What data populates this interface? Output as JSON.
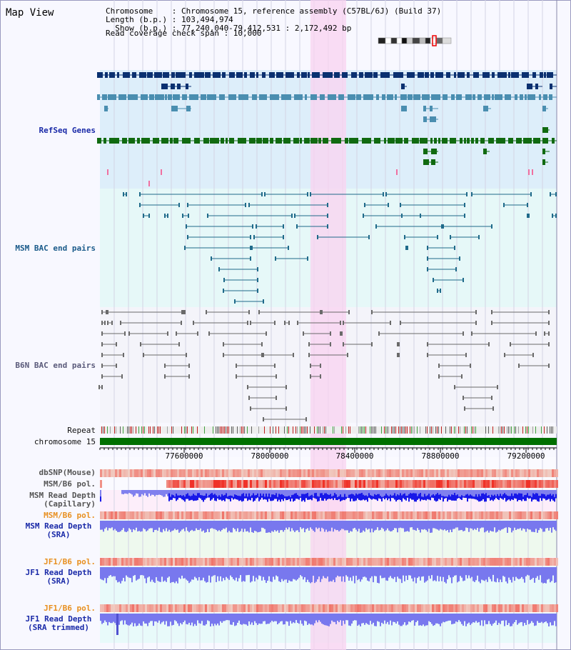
{
  "page_title": "Map View",
  "info": {
    "chromosome": "Chromosome    : Chromosome 15, reference assembly (C57BL/6J) (Build 37)",
    "length": "Length (b.p.) : 103,494,974",
    "show": "  Show (b.p.) : 77,240,040-79,412,531 : 2,172,492 bp",
    "coverage": "Read coverage check span : 10,000"
  },
  "tracks": {
    "refseq": "RefSeq Genes",
    "msm_bac": "MSM BAC end pairs",
    "b6n_bac": "B6N BAC end pairs",
    "repeat": "Repeat",
    "chromosome": "chromosome 15",
    "dbsnp": "dbSNP(Mouse)",
    "msm_b6_pol": "MSM/B6 pol.",
    "msm_depth_cap_1": "MSM Read Depth",
    "msm_depth_cap_2": "(Capillary)",
    "msm_b6_pol_sra": "MSM/B6 pol.",
    "msm_depth_sra_1": "MSM Read Depth",
    "msm_depth_sra_2": "(SRA)",
    "jf1_pol": "JF1/B6 pol.",
    "jf1_depth_1": "JF1 Read Depth",
    "jf1_depth_2": "(SRA)",
    "jf1_pol_2": "JF1/B6 pol.",
    "jf1_trim_1": "JF1 Read Depth",
    "jf1_trim_2": "(SRA trimmed)"
  },
  "axis_ticks": [
    "77600000",
    "78000000",
    "78400000",
    "78800000",
    "79200000"
  ],
  "colors": {
    "refseq_bg": "#ddeefa",
    "msm_bg": "#e6f8f8",
    "b6n_bg": "#f4f4fa",
    "highlight": "#f9d3f0",
    "dark_gene": "#0a3070",
    "mid_gene": "#4a8eb0",
    "green_gene": "#106a10",
    "msm_line": "#1f6a8a",
    "b6n_line": "#6a6a6a",
    "depth_blue": "#1818e8",
    "depth_light": "#7878ee"
  }
}
